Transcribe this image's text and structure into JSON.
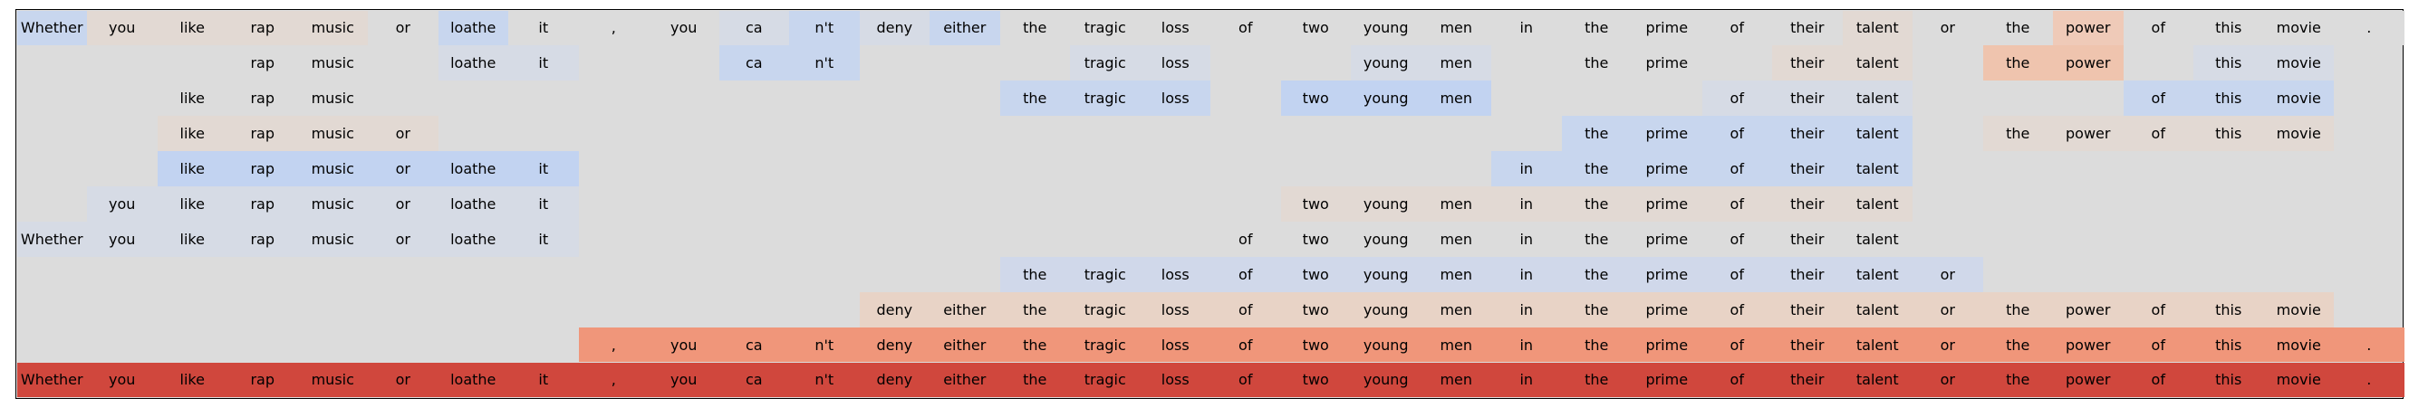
{
  "tokens": [
    "Whether",
    "you",
    "like",
    "rap",
    "music",
    "or",
    "loathe",
    "it",
    ",",
    "you",
    "ca",
    "n't",
    "deny",
    "either",
    "the",
    "tragic",
    "loss",
    "of",
    "two",
    "young",
    "men",
    "in",
    "the",
    "prime",
    "of",
    "their",
    "talent",
    "or",
    "the",
    "power",
    "of",
    "this",
    "movie",
    "."
  ],
  "rows": [
    {
      "cells": [
        [
          0,
          "#c8d6ee"
        ],
        [
          1,
          "#e2d9d3"
        ],
        [
          2,
          "#e2d9d3"
        ],
        [
          3,
          "#e2d9d3"
        ],
        [
          4,
          "#e2d9d3"
        ],
        [
          5,
          "#dcdcdc"
        ],
        [
          6,
          "#c8d6ee"
        ],
        [
          7,
          "#dcdcdc"
        ],
        [
          8,
          "#dcdcdc"
        ],
        [
          9,
          "#dcdcdc"
        ],
        [
          10,
          "#d6dbe5"
        ],
        [
          11,
          "#c8d6ee"
        ],
        [
          12,
          "#d6dbe5"
        ],
        [
          13,
          "#c8d6ee"
        ],
        [
          14,
          "#dcdcdc"
        ],
        [
          15,
          "#dcdcdc"
        ],
        [
          16,
          "#dcdcdc"
        ],
        [
          17,
          "#dcdcdc"
        ],
        [
          18,
          "#dcdcdc"
        ],
        [
          19,
          "#dcdcdc"
        ],
        [
          20,
          "#dcdcdc"
        ],
        [
          21,
          "#dcdcdc"
        ],
        [
          22,
          "#dcdcdc"
        ],
        [
          23,
          "#dcdcdc"
        ],
        [
          24,
          "#dcdcdc"
        ],
        [
          25,
          "#dcdcdc"
        ],
        [
          26,
          "#e2d9d3"
        ],
        [
          27,
          "#dcdcdc"
        ],
        [
          28,
          "#dcdcdc"
        ],
        [
          29,
          "#efcab8"
        ],
        [
          30,
          "#dcdcdc"
        ],
        [
          31,
          "#dcdcdc"
        ],
        [
          32,
          "#dcdcdc"
        ],
        [
          33,
          "#dcdcdc"
        ]
      ]
    },
    {
      "cells": [
        [
          3,
          "#dcdcdc"
        ],
        [
          4,
          "#dcdcdc"
        ],
        [
          6,
          "#d6dbe5"
        ],
        [
          7,
          "#d6dbe5"
        ],
        [
          10,
          "#c8d6ee"
        ],
        [
          11,
          "#c8d6ee"
        ],
        [
          15,
          "#d6dbe5"
        ],
        [
          16,
          "#d6dbe5"
        ],
        [
          19,
          "#d6dbe5"
        ],
        [
          20,
          "#d6dbe5"
        ],
        [
          22,
          "#dcdcdc"
        ],
        [
          23,
          "#dcdcdc"
        ],
        [
          25,
          "#e2d9d3"
        ],
        [
          26,
          "#e2d9d3"
        ],
        [
          28,
          "#efc4ae"
        ],
        [
          29,
          "#efc4ae"
        ],
        [
          31,
          "#d6dbe5"
        ],
        [
          32,
          "#d6dbe5"
        ]
      ]
    },
    {
      "cells": [
        [
          2,
          "#dcdcdc"
        ],
        [
          3,
          "#dcdcdc"
        ],
        [
          4,
          "#dcdcdc"
        ],
        [
          14,
          "#c8d6ee"
        ],
        [
          15,
          "#c8d6ee"
        ],
        [
          16,
          "#c8d6ee"
        ],
        [
          18,
          "#c2d3f1"
        ],
        [
          19,
          "#c2d3f1"
        ],
        [
          20,
          "#c2d3f1"
        ],
        [
          24,
          "#d6dbe5"
        ],
        [
          25,
          "#d6dbe5"
        ],
        [
          26,
          "#d6dbe5"
        ],
        [
          30,
          "#c8d6ee"
        ],
        [
          31,
          "#c8d6ee"
        ],
        [
          32,
          "#c8d6ee"
        ]
      ]
    },
    {
      "cells": [
        [
          2,
          "#e2d9d3"
        ],
        [
          3,
          "#e2d9d3"
        ],
        [
          4,
          "#e2d9d3"
        ],
        [
          5,
          "#e2d9d3"
        ],
        [
          22,
          "#c8d6ee"
        ],
        [
          23,
          "#c8d6ee"
        ],
        [
          24,
          "#c8d6ee"
        ],
        [
          25,
          "#c8d6ee"
        ],
        [
          26,
          "#c8d6ee"
        ],
        [
          28,
          "#e2d9d3"
        ],
        [
          29,
          "#e2d9d3"
        ],
        [
          30,
          "#e2d9d3"
        ],
        [
          31,
          "#e2d9d3"
        ],
        [
          32,
          "#e2d9d3"
        ]
      ]
    },
    {
      "cells": [
        [
          2,
          "#c2d3f1"
        ],
        [
          3,
          "#c2d3f1"
        ],
        [
          4,
          "#c2d3f1"
        ],
        [
          5,
          "#c2d3f1"
        ],
        [
          6,
          "#c2d3f1"
        ],
        [
          7,
          "#c2d3f1"
        ],
        [
          21,
          "#c8d6ee"
        ],
        [
          22,
          "#c8d6ee"
        ],
        [
          23,
          "#c8d6ee"
        ],
        [
          24,
          "#c8d6ee"
        ],
        [
          25,
          "#c8d6ee"
        ],
        [
          26,
          "#c8d6ee"
        ]
      ]
    },
    {
      "cells": [
        [
          1,
          "#d6dbe5"
        ],
        [
          2,
          "#d6dbe5"
        ],
        [
          3,
          "#d6dbe5"
        ],
        [
          4,
          "#d6dbe5"
        ],
        [
          5,
          "#d6dbe5"
        ],
        [
          6,
          "#d6dbe5"
        ],
        [
          7,
          "#d6dbe5"
        ],
        [
          18,
          "#e2d9d3"
        ],
        [
          19,
          "#e2d9d3"
        ],
        [
          20,
          "#e2d9d3"
        ],
        [
          21,
          "#e2d9d3"
        ],
        [
          22,
          "#e2d9d3"
        ],
        [
          23,
          "#e2d9d3"
        ],
        [
          24,
          "#e2d9d3"
        ],
        [
          25,
          "#e2d9d3"
        ],
        [
          26,
          "#e2d9d3"
        ]
      ]
    },
    {
      "cells": [
        [
          0,
          "#d6dbe5"
        ],
        [
          1,
          "#d6dbe5"
        ],
        [
          2,
          "#d6dbe5"
        ],
        [
          3,
          "#d6dbe5"
        ],
        [
          4,
          "#d6dbe5"
        ],
        [
          5,
          "#d6dbe5"
        ],
        [
          6,
          "#d6dbe5"
        ],
        [
          7,
          "#d6dbe5"
        ],
        [
          17,
          "#dcdcdc"
        ],
        [
          18,
          "#dcdcdc"
        ],
        [
          19,
          "#dcdcdc"
        ],
        [
          20,
          "#dcdcdc"
        ],
        [
          21,
          "#dcdcdc"
        ],
        [
          22,
          "#dcdcdc"
        ],
        [
          23,
          "#dcdcdc"
        ],
        [
          24,
          "#dcdcdc"
        ],
        [
          25,
          "#dcdcdc"
        ],
        [
          26,
          "#dcdcdc"
        ]
      ]
    },
    {
      "cells": [
        [
          14,
          "#d0d8ea"
        ],
        [
          15,
          "#d0d8ea"
        ],
        [
          16,
          "#d0d8ea"
        ],
        [
          17,
          "#d0d8ea"
        ],
        [
          18,
          "#d0d8ea"
        ],
        [
          19,
          "#d0d8ea"
        ],
        [
          20,
          "#d0d8ea"
        ],
        [
          21,
          "#d0d8ea"
        ],
        [
          22,
          "#d0d8ea"
        ],
        [
          23,
          "#d0d8ea"
        ],
        [
          24,
          "#d0d8ea"
        ],
        [
          25,
          "#d0d8ea"
        ],
        [
          26,
          "#d0d8ea"
        ],
        [
          27,
          "#d0d8ea"
        ]
      ]
    },
    {
      "cells": [
        [
          12,
          "#e8d3c6"
        ],
        [
          13,
          "#e8d3c6"
        ],
        [
          14,
          "#e8d3c6"
        ],
        [
          15,
          "#e8d3c6"
        ],
        [
          16,
          "#e8d3c6"
        ],
        [
          17,
          "#e8d3c6"
        ],
        [
          18,
          "#e8d3c6"
        ],
        [
          19,
          "#e8d3c6"
        ],
        [
          20,
          "#e8d3c6"
        ],
        [
          21,
          "#e8d3c6"
        ],
        [
          22,
          "#e8d3c6"
        ],
        [
          23,
          "#e8d3c6"
        ],
        [
          24,
          "#e8d3c6"
        ],
        [
          25,
          "#e8d3c6"
        ],
        [
          26,
          "#e8d3c6"
        ],
        [
          27,
          "#e8d3c6"
        ],
        [
          28,
          "#e8d3c6"
        ],
        [
          29,
          "#e8d3c6"
        ],
        [
          30,
          "#e8d3c6"
        ],
        [
          31,
          "#e8d3c6"
        ],
        [
          32,
          "#e8d3c6"
        ]
      ]
    },
    {
      "cells": [
        [
          8,
          "#f0967a"
        ],
        [
          9,
          "#f0967a"
        ],
        [
          10,
          "#f0967a"
        ],
        [
          11,
          "#f0967a"
        ],
        [
          12,
          "#f0967a"
        ],
        [
          13,
          "#f0967a"
        ],
        [
          14,
          "#f0967a"
        ],
        [
          15,
          "#f0967a"
        ],
        [
          16,
          "#f0967a"
        ],
        [
          17,
          "#f0967a"
        ],
        [
          18,
          "#f0967a"
        ],
        [
          19,
          "#f0967a"
        ],
        [
          20,
          "#f0967a"
        ],
        [
          21,
          "#f0967a"
        ],
        [
          22,
          "#f0967a"
        ],
        [
          23,
          "#f0967a"
        ],
        [
          24,
          "#f0967a"
        ],
        [
          25,
          "#f0967a"
        ],
        [
          26,
          "#f0967a"
        ],
        [
          27,
          "#f0967a"
        ],
        [
          28,
          "#f0967a"
        ],
        [
          29,
          "#f0967a"
        ],
        [
          30,
          "#f0967a"
        ],
        [
          31,
          "#f0967a"
        ],
        [
          32,
          "#f0967a"
        ],
        [
          33,
          "#f0967a"
        ]
      ]
    },
    {
      "cells": [
        [
          0,
          "#d0473d"
        ],
        [
          1,
          "#d0473d"
        ],
        [
          2,
          "#d0473d"
        ],
        [
          3,
          "#d0473d"
        ],
        [
          4,
          "#d0473d"
        ],
        [
          5,
          "#d0473d"
        ],
        [
          6,
          "#d0473d"
        ],
        [
          7,
          "#d0473d"
        ],
        [
          8,
          "#d0473d"
        ],
        [
          9,
          "#d0473d"
        ],
        [
          10,
          "#d0473d"
        ],
        [
          11,
          "#d0473d"
        ],
        [
          12,
          "#d0473d"
        ],
        [
          13,
          "#d0473d"
        ],
        [
          14,
          "#d0473d"
        ],
        [
          15,
          "#d0473d"
        ],
        [
          16,
          "#d0473d"
        ],
        [
          17,
          "#d0473d"
        ],
        [
          18,
          "#d0473d"
        ],
        [
          19,
          "#d0473d"
        ],
        [
          20,
          "#d0473d"
        ],
        [
          21,
          "#d0473d"
        ],
        [
          22,
          "#d0473d"
        ],
        [
          23,
          "#d0473d"
        ],
        [
          24,
          "#d0473d"
        ],
        [
          25,
          "#d0473d"
        ],
        [
          26,
          "#d0473d"
        ],
        [
          27,
          "#d0473d"
        ],
        [
          28,
          "#d0473d"
        ],
        [
          29,
          "#d0473d"
        ],
        [
          30,
          "#d0473d"
        ],
        [
          31,
          "#d0473d"
        ],
        [
          32,
          "#d0473d"
        ],
        [
          33,
          "#d0473d"
        ]
      ]
    }
  ]
}
